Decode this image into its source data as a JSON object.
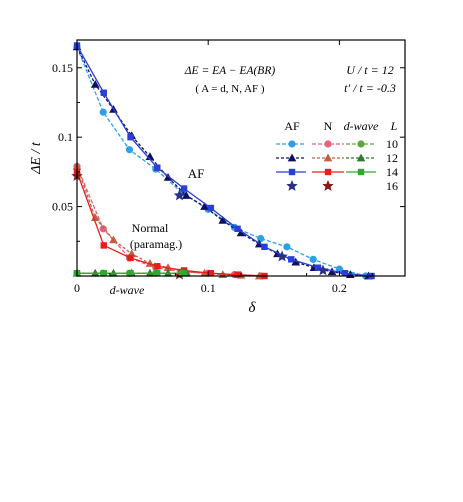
{
  "chart_data": {
    "type": "line",
    "xlabel": "δ",
    "ylabel": "ΔE / t",
    "xlim": [
      0,
      0.25
    ],
    "ylim": [
      0,
      0.17
    ],
    "x_ticks": [
      {
        "value": 0,
        "label": "0"
      },
      {
        "value": 0.1,
        "label": "0.1"
      },
      {
        "value": 0.2,
        "label": "0.2"
      }
    ],
    "y_ticks": [
      {
        "value": 0.05,
        "label": "0.05"
      },
      {
        "value": 0.1,
        "label": "0.1"
      },
      {
        "value": 0.15,
        "label": "0.15"
      }
    ],
    "annotations": {
      "formula": "ΔE = EA − EA(BR)",
      "formula_sub": "( A = d, N, AF )",
      "param_u": "U / t = 12",
      "param_t": "t′ / t = -0.3",
      "label_af": "AF",
      "label_normal": "Normal",
      "label_paramag": "(paramag.)",
      "label_dwave": "d-wave"
    },
    "legend": {
      "position": "top-right",
      "col_headers": [
        "AF",
        "N",
        "d-wave",
        "L"
      ],
      "rows": [
        "10",
        "12",
        "14",
        "16"
      ]
    },
    "colors": {
      "af10": "#2f9fe8",
      "af12": "#101060",
      "af14": "#2a3fd8",
      "af16": "#2a2f8a",
      "n10": "#e8607a",
      "n12": "#c06040",
      "n14": "#e81c1c",
      "n16": "#8a1a1a",
      "d10": "#5aa83a",
      "d12": "#2f7a2f",
      "d14": "#2fa82f"
    },
    "series": [
      {
        "group": "AF",
        "L": "10",
        "marker": "circle",
        "dash": "4,2",
        "x": [
          0,
          0.02,
          0.04,
          0.06,
          0.08,
          0.1,
          0.12,
          0.14,
          0.16,
          0.18,
          0.2,
          0.22
        ],
        "y": [
          0.165,
          0.118,
          0.091,
          0.077,
          0.06,
          0.048,
          0.035,
          0.027,
          0.021,
          0.012,
          0.005,
          0.0
        ]
      },
      {
        "group": "AF",
        "L": "12",
        "marker": "triangle",
        "dash": "3,2",
        "x": [
          0,
          0.0139,
          0.0278,
          0.0417,
          0.0556,
          0.0694,
          0.0833,
          0.0972,
          0.1111,
          0.125,
          0.1389,
          0.1528,
          0.1667,
          0.1806,
          0.1944,
          0.2083,
          0.2222
        ],
        "y": [
          0.165,
          0.138,
          0.12,
          0.101,
          0.086,
          0.071,
          0.058,
          0.05,
          0.04,
          0.031,
          0.023,
          0.016,
          0.01,
          0.006,
          0.003,
          0.001,
          0.0
        ]
      },
      {
        "group": "AF",
        "L": "14",
        "marker": "square",
        "dash": "",
        "x": [
          0,
          0.0204,
          0.0408,
          0.0612,
          0.0816,
          0.102,
          0.1224,
          0.1429,
          0.1633,
          0.1837,
          0.2041,
          0.2245
        ],
        "y": [
          0.166,
          0.132,
          0.1,
          0.078,
          0.063,
          0.049,
          0.034,
          0.021,
          0.012,
          0.006,
          0.002,
          0.0
        ]
      },
      {
        "group": "AF",
        "L": "16",
        "marker": "star",
        "dash": "none",
        "x": [
          0.0781,
          0.1563,
          0.1875
        ],
        "y": [
          0.058,
          0.014,
          0.004
        ]
      },
      {
        "group": "N",
        "L": "10",
        "marker": "circle",
        "dash": "4,2",
        "x": [
          0,
          0.02,
          0.04,
          0.06,
          0.08,
          0.1,
          0.12,
          0.14
        ],
        "y": [
          0.079,
          0.034,
          0.013,
          0.006,
          0.003,
          0.002,
          0.001,
          0.0
        ]
      },
      {
        "group": "N",
        "L": "12",
        "marker": "triangle",
        "dash": "3,2",
        "x": [
          0,
          0.0139,
          0.0278,
          0.0417,
          0.0556,
          0.0694,
          0.0833,
          0.0972,
          0.1111,
          0.125,
          0.1389
        ],
        "y": [
          0.079,
          0.042,
          0.026,
          0.016,
          0.009,
          0.006,
          0.003,
          0.002,
          0.001,
          0.0005,
          0.0
        ]
      },
      {
        "group": "N",
        "L": "14",
        "marker": "square",
        "dash": "",
        "x": [
          0,
          0.0204,
          0.0408,
          0.0612,
          0.0816,
          0.102,
          0.1224,
          0.1429
        ],
        "y": [
          0.075,
          0.022,
          0.013,
          0.007,
          0.004,
          0.002,
          0.001,
          0.0
        ]
      },
      {
        "group": "N",
        "L": "16",
        "marker": "star",
        "dash": "none",
        "x": [
          0,
          0.0781
        ],
        "y": [
          0.072,
          0.001
        ]
      },
      {
        "group": "d-wave",
        "L": "10",
        "marker": "circle",
        "dash": "4,2",
        "x": [
          0,
          0.02,
          0.04,
          0.06,
          0.08
        ],
        "y": [
          0.002,
          0.002,
          0.002,
          0.002,
          0.002
        ]
      },
      {
        "group": "d-wave",
        "L": "12",
        "marker": "triangle",
        "dash": "3,2",
        "x": [
          0,
          0.0139,
          0.0278,
          0.0417,
          0.0556,
          0.0694,
          0.0833
        ],
        "y": [
          0.002,
          0.002,
          0.002,
          0.002,
          0.002,
          0.002,
          0.002
        ]
      },
      {
        "group": "d-wave",
        "L": "14",
        "marker": "square",
        "dash": "",
        "x": [
          0,
          0.0204,
          0.0408,
          0.0612,
          0.0816
        ],
        "y": [
          0.002,
          0.002,
          0.002,
          0.002,
          0.002
        ]
      }
    ]
  }
}
